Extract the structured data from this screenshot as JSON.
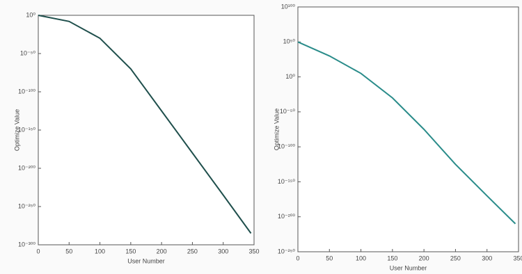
{
  "chart_data": [
    {
      "type": "line",
      "xlabel": "User Number",
      "ylabel": "Optimize Value",
      "log_y": true,
      "x": [
        0,
        50,
        100,
        150,
        200,
        250,
        300,
        345
      ],
      "series": [
        {
          "name": "Optimize Value",
          "color": "#1f4f4c",
          "values": [
            1.0,
            1e-08,
            1e-30,
            1e-70,
            1e-125,
            1e-180,
            1e-235,
            1e-285
          ]
        }
      ],
      "xlim": [
        0,
        350
      ],
      "xticks": [
        0,
        50,
        100,
        150,
        200,
        250,
        300,
        350
      ],
      "ylim": [
        1e-300,
        1.0
      ],
      "yticks": [
        {
          "value": 1.0,
          "label": "10⁰"
        },
        {
          "value": 1e-50,
          "label": "10⁻⁵⁰"
        },
        {
          "value": 1e-100,
          "label": "10⁻¹⁰⁰"
        },
        {
          "value": 1e-150,
          "label": "10⁻¹⁵⁰"
        },
        {
          "value": 1e-200,
          "label": "10⁻²⁰⁰"
        },
        {
          "value": 1e-250,
          "label": "10⁻²⁵⁰"
        },
        {
          "value": 1e-300,
          "label": "10⁻³⁰⁰"
        }
      ]
    },
    {
      "type": "line",
      "xlabel": "User Number",
      "ylabel": "Optimize Value",
      "log_y": true,
      "x": [
        0,
        50,
        100,
        150,
        200,
        250,
        300,
        345
      ],
      "series": [
        {
          "name": "Optimize Value",
          "color": "#2a8c8a",
          "values": [
            1e+50,
            1e+30,
            100000.0,
            1e-30,
            1e-75,
            1e-125,
            1e-170,
            1e-210
          ]
        }
      ],
      "xlim": [
        0,
        350
      ],
      "xticks": [
        0,
        50,
        100,
        150,
        200,
        250,
        300,
        350
      ],
      "ylim": [
        1e-250,
        1e+100
      ],
      "yticks": [
        {
          "value": 1e+100,
          "label": "10¹⁰⁰"
        },
        {
          "value": 1e+50,
          "label": "10⁵⁰"
        },
        {
          "value": 1.0,
          "label": "10⁰"
        },
        {
          "value": 1e-50,
          "label": "10⁻⁵⁰"
        },
        {
          "value": 1e-100,
          "label": "10⁻¹⁰⁰"
        },
        {
          "value": 1e-150,
          "label": "10⁻¹⁵⁰"
        },
        {
          "value": 1e-200,
          "label": "10⁻²⁰⁰"
        },
        {
          "value": 1e-250,
          "label": "10⁻²⁵⁰"
        }
      ]
    }
  ]
}
